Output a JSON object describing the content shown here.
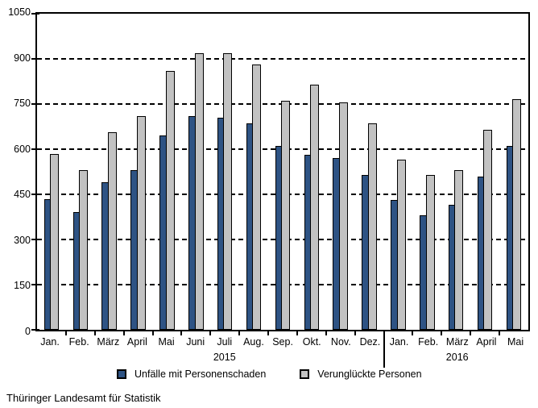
{
  "footer": {
    "text": "Thüringer Landesamt für Statistik"
  },
  "chart_data": {
    "type": "bar",
    "title": "",
    "xlabel": "",
    "ylabel": "",
    "categories": [
      "Jan.",
      "Feb.",
      "März",
      "April",
      "Mai",
      "Juni",
      "Juli",
      "Aug.",
      "Sep.",
      "Okt.",
      "Nov.",
      "Dez.",
      "Jan.",
      "Feb.",
      "März",
      "April",
      "Mai"
    ],
    "year_row": [
      {
        "label": "2015",
        "under_month_index": 6
      },
      {
        "label": "2016",
        "under_month_index": 14
      }
    ],
    "section_separator_after_index": 11,
    "series": [
      {
        "name": "Unfälle mit Personenschaden",
        "color": "#2e5384",
        "values": [
          435,
          390,
          490,
          530,
          645,
          710,
          705,
          685,
          610,
          580,
          570,
          515,
          430,
          380,
          415,
          510,
          610
        ]
      },
      {
        "name": "Verunglückte Personen",
        "color": "#c2c2c2",
        "values": [
          585,
          530,
          655,
          710,
          860,
          920,
          920,
          880,
          760,
          815,
          755,
          685,
          565,
          515,
          530,
          665,
          765
        ]
      }
    ],
    "ylim": [
      0,
      1050
    ],
    "yticks": [
      0,
      150,
      300,
      450,
      600,
      750,
      900,
      1050
    ],
    "grid": "horizontal-dashed",
    "legend_position": "bottom"
  }
}
